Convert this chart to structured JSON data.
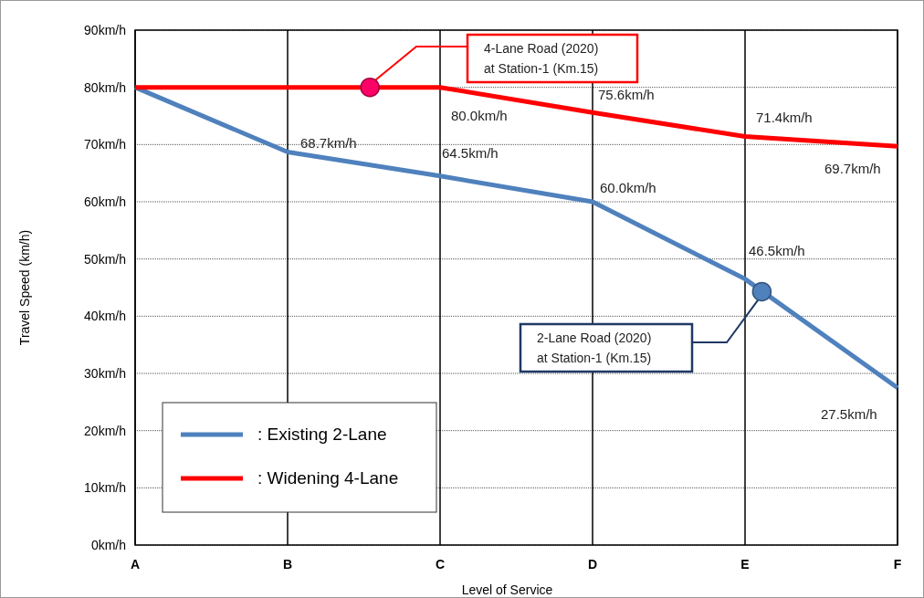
{
  "chart_data": {
    "type": "line",
    "xlabel": "Level of Service",
    "ylabel": "Travel Speed (km/h)",
    "categories": [
      "A",
      "B",
      "C",
      "D",
      "E",
      "F"
    ],
    "ylim": [
      0,
      90
    ],
    "yticks": [
      {
        "value": 0,
        "label": "0km/h"
      },
      {
        "value": 10,
        "label": "10km/h"
      },
      {
        "value": 20,
        "label": "20km/h"
      },
      {
        "value": 30,
        "label": "30km/h"
      },
      {
        "value": 40,
        "label": "40km/h"
      },
      {
        "value": 50,
        "label": "50km/h"
      },
      {
        "value": 60,
        "label": "60km/h"
      },
      {
        "value": 70,
        "label": "70km/h"
      },
      {
        "value": 80,
        "label": "80km/h"
      },
      {
        "value": 90,
        "label": "90km/h"
      }
    ],
    "grid": true,
    "legend": "bottom left",
    "line_style": "solid",
    "series": [
      {
        "name": ": Existing 2-Lane",
        "color": "#4f81bd",
        "values": [
          80,
          68.7,
          64.5,
          60.0,
          46.5,
          27.5
        ],
        "value_labels": [
          null,
          "68.7km/h",
          "64.5km/h",
          "60.0km/h",
          "46.5km/h",
          "27.5km/h"
        ]
      },
      {
        "name": ": Widening 4-Lane",
        "color": "#ff0000",
        "values": [
          80,
          80,
          80.0,
          75.6,
          71.4,
          69.7
        ],
        "value_labels": [
          null,
          null,
          "80.0km/h",
          "75.6km/h",
          "71.4km/h",
          "69.7km/h"
        ]
      }
    ],
    "annotations": [
      "4-Lane Road (2020)\nat Station-1 (Km.15)",
      "2-Lane Road (2020)\nat Station-1 (Km.15)"
    ]
  }
}
